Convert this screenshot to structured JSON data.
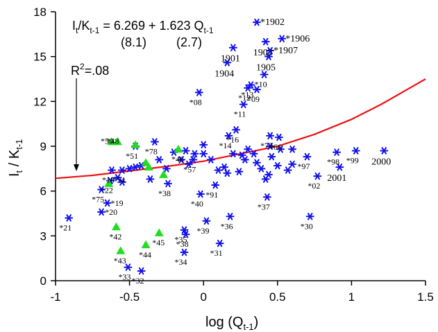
{
  "chart_data": {
    "type": "scatter",
    "xlabel": "log (Q",
    "xlabel_sub": "t-1",
    "xlabel_tail": ")",
    "ylabel_parts": [
      "I",
      "t",
      " / K",
      "t-1"
    ],
    "xlim": [
      -1,
      1.5
    ],
    "ylim": [
      0,
      18
    ],
    "xticks": [
      -1,
      -0.5,
      0,
      0.5,
      1,
      1.5
    ],
    "xtick_labels": [
      "-1",
      "-0.5",
      "0",
      "0.5",
      "1",
      "1.5"
    ],
    "yticks": [
      0,
      3,
      6,
      9,
      12,
      15,
      18
    ],
    "ytick_labels": [
      "0",
      "3",
      "6",
      "9",
      "12",
      "15",
      "18"
    ],
    "grid": false,
    "equation": {
      "lhs_I": "I",
      "lhs_t": "t",
      "lhs_K": "/K",
      "lhs_tm1": "t-1",
      "rhs": " = 6.269 + 1.623 Q",
      "rhs_sub": "t-1",
      "se_intercept": "(8.1)",
      "se_slope": "(2.7)"
    },
    "r2_label": "R",
    "r2_sup": "2",
    "r2_value": "=.08",
    "colors": {
      "stars": "#1010ee",
      "triangles": "#22dd22",
      "curve": "#ee1111",
      "axes": "#000000"
    },
    "curve": {
      "x": [
        -1.0,
        -0.75,
        -0.5,
        -0.25,
        0.0,
        0.25,
        0.5,
        0.75,
        1.0,
        1.2,
        1.5
      ],
      "y": [
        6.85,
        7.05,
        7.35,
        7.65,
        8.0,
        8.5,
        9.0,
        9.8,
        10.8,
        11.8,
        13.5
      ]
    },
    "star_points": [
      {
        "x": -0.91,
        "y": 4.2,
        "label": "*21"
      },
      {
        "x": -0.69,
        "y": 4.6,
        "label": "*20"
      },
      {
        "x": -0.65,
        "y": 5.2,
        "label": "*19"
      },
      {
        "x": -0.69,
        "y": 6.1,
        "label": "*75"
      },
      {
        "x": -0.63,
        "y": 6.7,
        "label": "*22"
      },
      {
        "x": -0.62,
        "y": 7.4,
        "label": "*18"
      },
      {
        "x": -0.55,
        "y": 7.4,
        "label": "*54"
      },
      {
        "x": -0.51,
        "y": 0.9,
        "label": "*33"
      },
      {
        "x": -0.42,
        "y": 0.65,
        "label": "*32"
      },
      {
        "x": -0.46,
        "y": 9.0,
        "label": "*51"
      },
      {
        "x": -0.33,
        "y": 9.3,
        "label": "*78"
      },
      {
        "x": -0.24,
        "y": 6.5,
        "label": "*38"
      },
      {
        "x": -0.13,
        "y": 3.4,
        "label": "*35"
      },
      {
        "x": -0.12,
        "y": 3.1,
        "label": "*38"
      },
      {
        "x": -0.13,
        "y": 1.9,
        "label": "*34"
      },
      {
        "x": -0.03,
        "y": 12.6,
        "label": "*08"
      },
      {
        "x": -0.07,
        "y": 8.1,
        "label": "*57"
      },
      {
        "x": 0.02,
        "y": 4.0,
        "label": "*39"
      },
      {
        "x": -0.02,
        "y": 5.8,
        "label": "*40"
      },
      {
        "x": 0.08,
        "y": 6.4,
        "label": "*91"
      },
      {
        "x": 0.18,
        "y": 4.3,
        "label": "*36"
      },
      {
        "x": 0.11,
        "y": 2.5,
        "label": "*31"
      },
      {
        "x": 0.17,
        "y": 9.7,
        "label": "*14"
      },
      {
        "x": 0.22,
        "y": 10.1,
        "label": "*16"
      },
      {
        "x": 0.27,
        "y": 11.8,
        "label": "*11"
      },
      {
        "x": 0.3,
        "y": 12.9,
        "label": "*12"
      },
      {
        "x": 0.32,
        "y": 13.1,
        "label": "*13"
      },
      {
        "x": 0.36,
        "y": 12.8,
        "label": "*09"
      },
      {
        "x": 0.41,
        "y": 13.8,
        "label": "*10"
      },
      {
        "x": 0.45,
        "y": 9.7,
        "label": "*73"
      },
      {
        "x": 0.51,
        "y": 9.6,
        "label": "*66"
      },
      {
        "x": 0.43,
        "y": 5.6,
        "label": "*37"
      },
      {
        "x": 0.72,
        "y": 4.3,
        "label": "*30"
      },
      {
        "x": 0.7,
        "y": 8.3,
        "label": "*97"
      },
      {
        "x": 0.77,
        "y": 7.0,
        "label": "*02"
      },
      {
        "x": 0.9,
        "y": 8.6,
        "label": "*98"
      },
      {
        "x": 1.03,
        "y": 8.7,
        "label": "*99"
      },
      {
        "x": 0.92,
        "y": 7.6,
        "label": "2001"
      },
      {
        "x": 1.22,
        "y": 8.7,
        "label": "2000"
      },
      {
        "x": 0.36,
        "y": 17.3,
        "label": "*1902"
      },
      {
        "x": 0.42,
        "y": 16.0,
        "label": "1903"
      },
      {
        "x": 0.53,
        "y": 16.2,
        "label": "*1906"
      },
      {
        "x": 0.45,
        "y": 15.4,
        "label": "*1907"
      },
      {
        "x": 0.44,
        "y": 15.0,
        "label": "1905"
      },
      {
        "x": 0.2,
        "y": 15.6,
        "label": "1901"
      },
      {
        "x": 0.16,
        "y": 14.6,
        "label": "1904"
      },
      {
        "x": -0.58,
        "y": 6.9,
        "label": ""
      },
      {
        "x": -0.55,
        "y": 6.6,
        "label": ""
      },
      {
        "x": -0.5,
        "y": 7.5,
        "label": ""
      },
      {
        "x": -0.46,
        "y": 7.6,
        "label": ""
      },
      {
        "x": -0.42,
        "y": 7.7,
        "label": ""
      },
      {
        "x": -0.36,
        "y": 6.8,
        "label": ""
      },
      {
        "x": -0.3,
        "y": 8.1,
        "label": ""
      },
      {
        "x": -0.25,
        "y": 7.5,
        "label": ""
      },
      {
        "x": -0.2,
        "y": 8.6,
        "label": ""
      },
      {
        "x": -0.15,
        "y": 8.1,
        "label": ""
      },
      {
        "x": -0.12,
        "y": 8.7,
        "label": ""
      },
      {
        "x": -0.1,
        "y": 7.8,
        "label": ""
      },
      {
        "x": -0.06,
        "y": 8.5,
        "label": ""
      },
      {
        "x": 0.0,
        "y": 8.5,
        "label": ""
      },
      {
        "x": 0.0,
        "y": 9.1,
        "label": ""
      },
      {
        "x": 0.05,
        "y": 8.1,
        "label": ""
      },
      {
        "x": 0.1,
        "y": 7.4,
        "label": ""
      },
      {
        "x": 0.14,
        "y": 7.6,
        "label": ""
      },
      {
        "x": 0.16,
        "y": 7.2,
        "label": ""
      },
      {
        "x": 0.2,
        "y": 8.5,
        "label": ""
      },
      {
        "x": 0.24,
        "y": 7.3,
        "label": ""
      },
      {
        "x": 0.26,
        "y": 8.4,
        "label": ""
      },
      {
        "x": 0.28,
        "y": 8.1,
        "label": ""
      },
      {
        "x": 0.3,
        "y": 8.8,
        "label": ""
      },
      {
        "x": 0.34,
        "y": 8.5,
        "label": ""
      },
      {
        "x": 0.36,
        "y": 7.9,
        "label": ""
      },
      {
        "x": 0.39,
        "y": 7.5,
        "label": ""
      },
      {
        "x": 0.42,
        "y": 6.8,
        "label": ""
      },
      {
        "x": 0.45,
        "y": 9.0,
        "label": ""
      },
      {
        "x": 0.46,
        "y": 8.3,
        "label": ""
      },
      {
        "x": 0.5,
        "y": 7.7,
        "label": ""
      },
      {
        "x": 0.52,
        "y": 8.8,
        "label": ""
      },
      {
        "x": 0.57,
        "y": 7.4,
        "label": ""
      },
      {
        "x": 0.6,
        "y": 7.8,
        "label": ""
      },
      {
        "x": 0.6,
        "y": 8.8,
        "label": ""
      },
      {
        "x": 0.44,
        "y": 7.1,
        "label": ""
      }
    ],
    "triangle_points": [
      {
        "x": -0.62,
        "y": 9.3,
        "label": "*50"
      },
      {
        "x": -0.58,
        "y": 9.3,
        "label": "*48"
      },
      {
        "x": -0.64,
        "y": 6.5,
        "label": ""
      },
      {
        "x": -0.59,
        "y": 3.6,
        "label": "*42"
      },
      {
        "x": -0.56,
        "y": 2.0,
        "label": "*43"
      },
      {
        "x": -0.39,
        "y": 2.4,
        "label": "*44"
      },
      {
        "x": -0.3,
        "y": 3.2,
        "label": "*45"
      },
      {
        "x": -0.17,
        "y": 8.8,
        "label": "*46"
      },
      {
        "x": -0.39,
        "y": 7.9,
        "label": ""
      },
      {
        "x": -0.27,
        "y": 7.1,
        "label": ""
      },
      {
        "x": -0.46,
        "y": 9.1,
        "label": ""
      },
      {
        "x": -0.37,
        "y": 7.6,
        "label": ""
      }
    ]
  }
}
